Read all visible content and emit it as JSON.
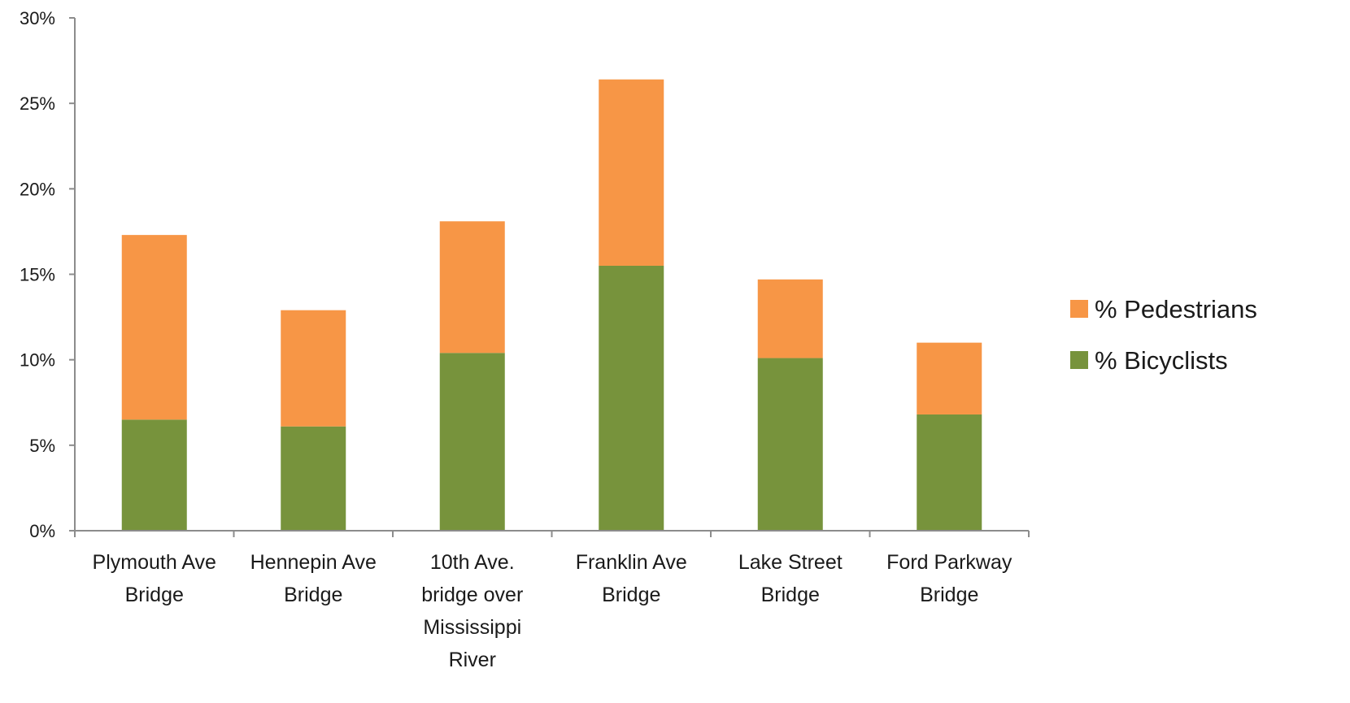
{
  "chart_data": {
    "type": "bar",
    "stacked": true,
    "categories": [
      [
        "Plymouth Ave",
        "Bridge"
      ],
      [
        "Hennepin Ave",
        "Bridge"
      ],
      [
        "10th Ave.",
        "bridge over",
        "Mississippi",
        "River"
      ],
      [
        "Franklin Ave",
        "Bridge"
      ],
      [
        "Lake Street",
        "Bridge"
      ],
      [
        "Ford Parkway",
        "Bridge"
      ]
    ],
    "series": [
      {
        "name": "% Bicyclists",
        "color": "#77933c",
        "values": [
          6.5,
          6.1,
          10.4,
          15.5,
          10.1,
          6.8
        ]
      },
      {
        "name": "% Pedestrians",
        "color": "#f79646",
        "values": [
          10.8,
          6.8,
          7.7,
          10.9,
          4.6,
          4.2
        ]
      }
    ],
    "legend_order": [
      "% Pedestrians",
      "% Bicyclists"
    ],
    "y_ticks": [
      "0%",
      "5%",
      "10%",
      "15%",
      "20%",
      "25%",
      "30%"
    ],
    "ylim": [
      0,
      30
    ],
    "grid": false,
    "legend_position": "right",
    "title": "",
    "xlabel": "",
    "ylabel": ""
  }
}
